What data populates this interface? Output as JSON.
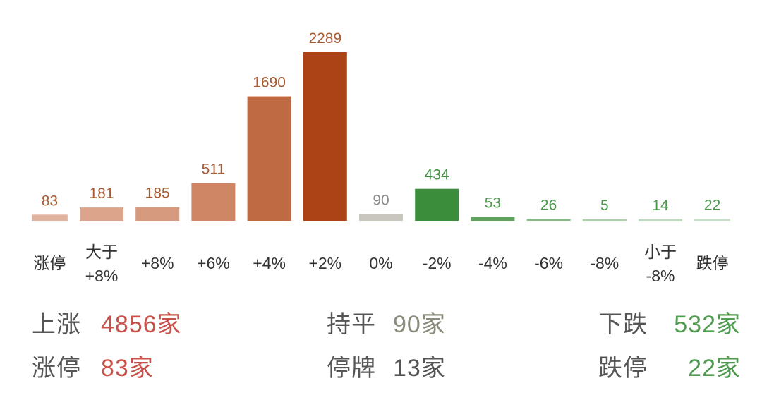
{
  "chart_data": {
    "type": "bar",
    "categories": [
      "涨停",
      "大于\n+8%",
      "+8%",
      "+6%",
      "+4%",
      "+2%",
      "0%",
      "-2%",
      "-4%",
      "-6%",
      "-8%",
      "小于\n-8%",
      "跌停"
    ],
    "values": [
      83,
      181,
      185,
      511,
      1690,
      2289,
      90,
      434,
      53,
      26,
      5,
      14,
      22
    ],
    "bar_colors": [
      "#e1b29d",
      "#dba48b",
      "#d69a7f",
      "#cf8664",
      "#c06a43",
      "#ac4317",
      "#c9c6be",
      "#3b8d3b",
      "#5fa35f",
      "#86ba86",
      "#a9d0a9",
      "#bcdbbc",
      "#c6e0c6"
    ],
    "label_colors": [
      "#a85a32",
      "#a85a32",
      "#a85a32",
      "#a85a32",
      "#a85a32",
      "#a85a32",
      "#8a8a8a",
      "#3e8e3e",
      "#4a974a",
      "#4a974a",
      "#4a974a",
      "#4a974a",
      "#4a974a"
    ],
    "category_label_color": "#333333"
  },
  "summary": {
    "up": {
      "label": "上涨",
      "value": "4856家"
    },
    "flat": {
      "label": "持平",
      "value": "90家"
    },
    "down": {
      "label": "下跌",
      "value": "532家"
    },
    "limit_up": {
      "label": "涨停",
      "value": "83家"
    },
    "suspended": {
      "label": "停牌",
      "value": "13家"
    },
    "limit_down": {
      "label": "跌停",
      "value": "22家"
    }
  },
  "colors": {
    "up": "#c8524b",
    "flat": "#8b8b7c",
    "down": "#4f9b4f",
    "neutral": "#555555"
  }
}
